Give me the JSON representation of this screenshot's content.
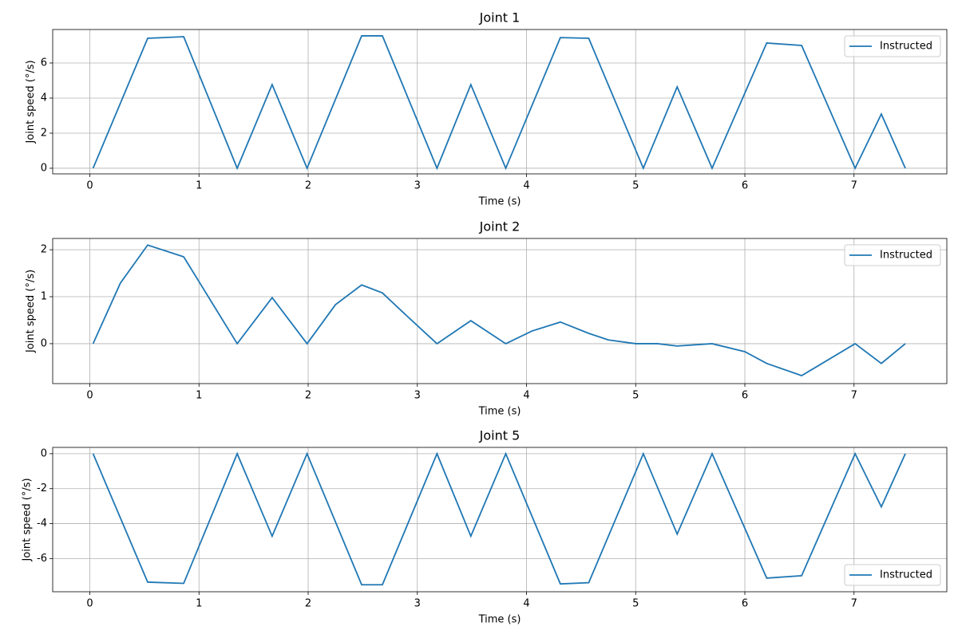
{
  "chart_data": [
    {
      "type": "line",
      "title": "Joint 1",
      "xlabel": "Time (s)",
      "ylabel": "Joint speed (°/s)",
      "x": [
        0.03,
        0.53,
        0.86,
        1.35,
        1.67,
        1.99,
        2.49,
        2.68,
        3.18,
        3.49,
        3.81,
        4.31,
        4.57,
        5.07,
        5.38,
        5.7,
        6.2,
        6.52,
        7.01,
        7.25,
        7.47
      ],
      "series": [
        {
          "name": "Instructed",
          "color": "#1f77b4",
          "values": [
            0,
            7.41,
            7.5,
            0,
            4.77,
            0,
            7.55,
            7.55,
            0,
            4.77,
            0,
            7.45,
            7.41,
            0,
            4.64,
            0,
            7.14,
            7.0,
            0,
            3.09,
            0
          ]
        }
      ],
      "xlim": [
        -0.34,
        7.85
      ],
      "ylim": [
        -0.32,
        7.91
      ],
      "xticks": [
        0,
        1,
        2,
        3,
        4,
        5,
        6,
        7
      ],
      "yticks": [
        0,
        2,
        4,
        6
      ],
      "grid": true,
      "legend": "upper right"
    },
    {
      "type": "line",
      "title": "Joint 2",
      "xlabel": "Time (s)",
      "ylabel": "Joint speed (°/s)",
      "x": [
        0.03,
        0.28,
        0.53,
        0.86,
        1.35,
        1.67,
        1.99,
        2.25,
        2.49,
        2.68,
        2.9,
        3.18,
        3.49,
        3.81,
        4.05,
        4.31,
        4.57,
        4.75,
        5.0,
        5.2,
        5.38,
        5.7,
        6.0,
        6.2,
        6.52,
        7.01,
        7.25,
        7.47
      ],
      "series": [
        {
          "name": "Instructed",
          "color": "#1f77b4",
          "values": [
            0,
            1.29,
            2.1,
            1.85,
            0,
            0.98,
            0,
            0.83,
            1.25,
            1.08,
            0.6,
            0,
            0.49,
            0,
            0.27,
            0.46,
            0.22,
            0.08,
            0,
            0,
            -0.05,
            0,
            -0.17,
            -0.42,
            -0.68,
            0,
            -0.42,
            0
          ]
        }
      ],
      "xlim": [
        -0.34,
        7.85
      ],
      "ylim": [
        -0.85,
        2.24
      ],
      "xticks": [
        0,
        1,
        2,
        3,
        4,
        5,
        6,
        7
      ],
      "yticks": [
        0,
        1,
        2
      ],
      "grid": true,
      "legend": "upper right"
    },
    {
      "type": "line",
      "title": "Joint 5",
      "xlabel": "Time (s)",
      "ylabel": "Joint speed (°/s)",
      "x": [
        0.03,
        0.53,
        0.86,
        1.35,
        1.67,
        1.99,
        2.49,
        2.68,
        3.18,
        3.49,
        3.81,
        4.31,
        4.57,
        5.07,
        5.38,
        5.7,
        6.2,
        6.52,
        7.01,
        7.25,
        7.47
      ],
      "series": [
        {
          "name": "Instructed",
          "color": "#1f77b4",
          "values": [
            0,
            -7.35,
            -7.42,
            0,
            -4.72,
            0,
            -7.5,
            -7.5,
            0,
            -4.72,
            0,
            -7.45,
            -7.38,
            0,
            -4.6,
            0,
            -7.12,
            -6.98,
            0,
            -3.04,
            0
          ]
        }
      ],
      "xlim": [
        -0.34,
        7.85
      ],
      "ylim": [
        -7.9,
        0.36
      ],
      "xticks": [
        0,
        1,
        2,
        3,
        4,
        5,
        6,
        7
      ],
      "yticks": [
        -6,
        -4,
        -2,
        0
      ],
      "grid": true,
      "legend": "lower right"
    }
  ]
}
